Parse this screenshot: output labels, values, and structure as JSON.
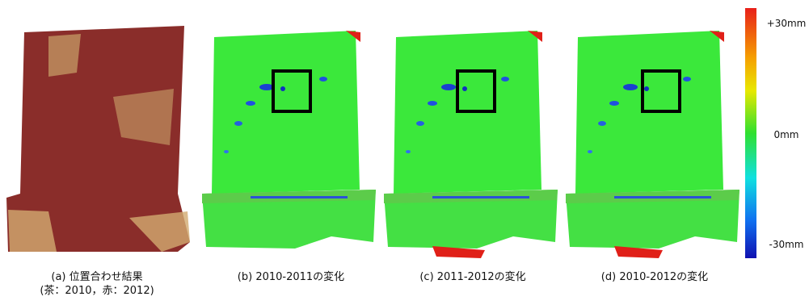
{
  "panels": [
    {
      "caption": [
        "(a) 位置合わせ結果",
        "(茶：2010，赤：2012)"
      ]
    },
    {
      "caption": [
        "(b) 2010-2011の変化"
      ]
    },
    {
      "caption": [
        "(c) 2011-2012の変化"
      ]
    },
    {
      "caption": [
        "(d) 2010-2012の変化"
      ]
    }
  ],
  "colorbar": {
    "labels": [
      "+30mm",
      "0mm",
      "-30mm"
    ]
  }
}
